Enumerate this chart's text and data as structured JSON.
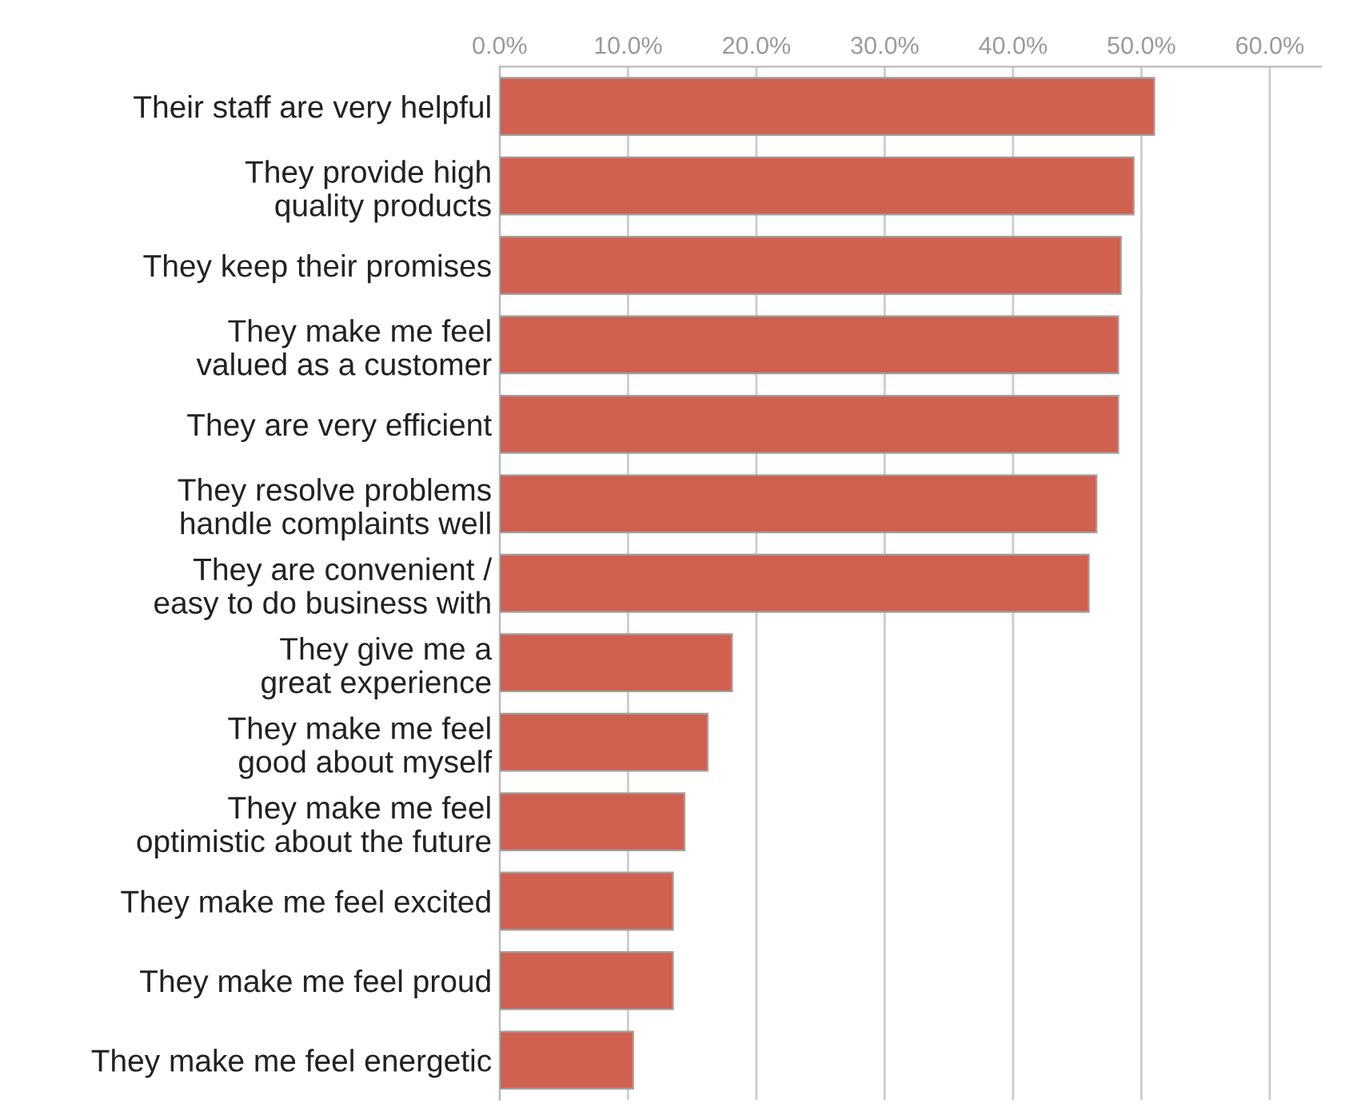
{
  "chart_data": {
    "type": "bar",
    "orientation": "horizontal",
    "categories": [
      "Their staff are very helpful",
      "They provide high\nquality products",
      "They keep their promises",
      "They make me feel\nvalued as a customer",
      "They are very efficient",
      "They resolve problems\nhandle complaints well",
      "They are convenient /\neasy to do business with",
      "They give me a\ngreat experience",
      "They make me feel\ngood about myself",
      "They make me feel\noptimistic about the future",
      "They make me feel excited",
      "They make me feel proud",
      "They make me feel energetic"
    ],
    "values": [
      51.0,
      49.4,
      48.4,
      48.2,
      48.2,
      46.5,
      45.9,
      18.1,
      16.2,
      14.4,
      13.5,
      13.5,
      10.4
    ],
    "color": "#d0604f",
    "xlim": [
      0,
      64
    ],
    "xticks": [
      {
        "value": 0,
        "label": "0.0%"
      },
      {
        "value": 10,
        "label": "10.0%"
      },
      {
        "value": 20,
        "label": "20.0%"
      },
      {
        "value": 30,
        "label": "30.0%"
      },
      {
        "value": 40,
        "label": "40.0%"
      },
      {
        "value": 50,
        "label": "50.0%"
      },
      {
        "value": 60,
        "label": "60.0%"
      }
    ],
    "grid": "x"
  }
}
